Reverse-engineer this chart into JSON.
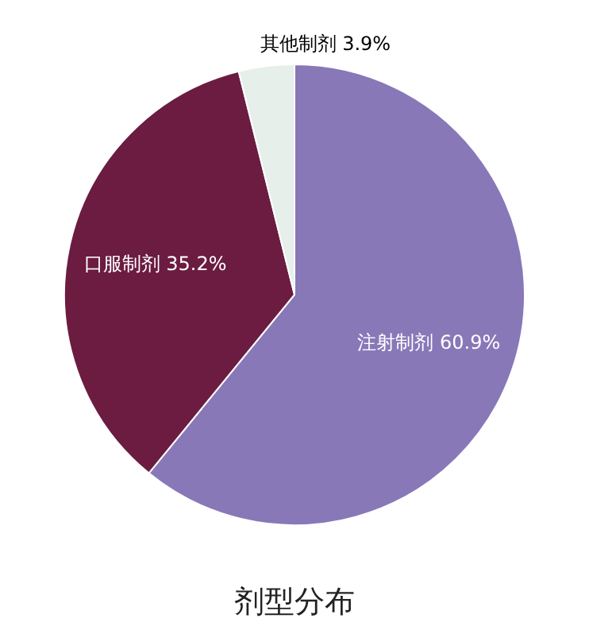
{
  "chart_data": {
    "type": "pie",
    "title": "剂型分布",
    "categories": [
      "注射制剂",
      "口服制剂",
      "其他制剂"
    ],
    "values": [
      60.9,
      35.2,
      3.9
    ],
    "colors": [
      "#8878b8",
      "#6b1c40",
      "#e6efea"
    ],
    "value_labels": [
      "60.9%",
      "35.2%",
      "3.9%"
    ],
    "legend": false
  }
}
